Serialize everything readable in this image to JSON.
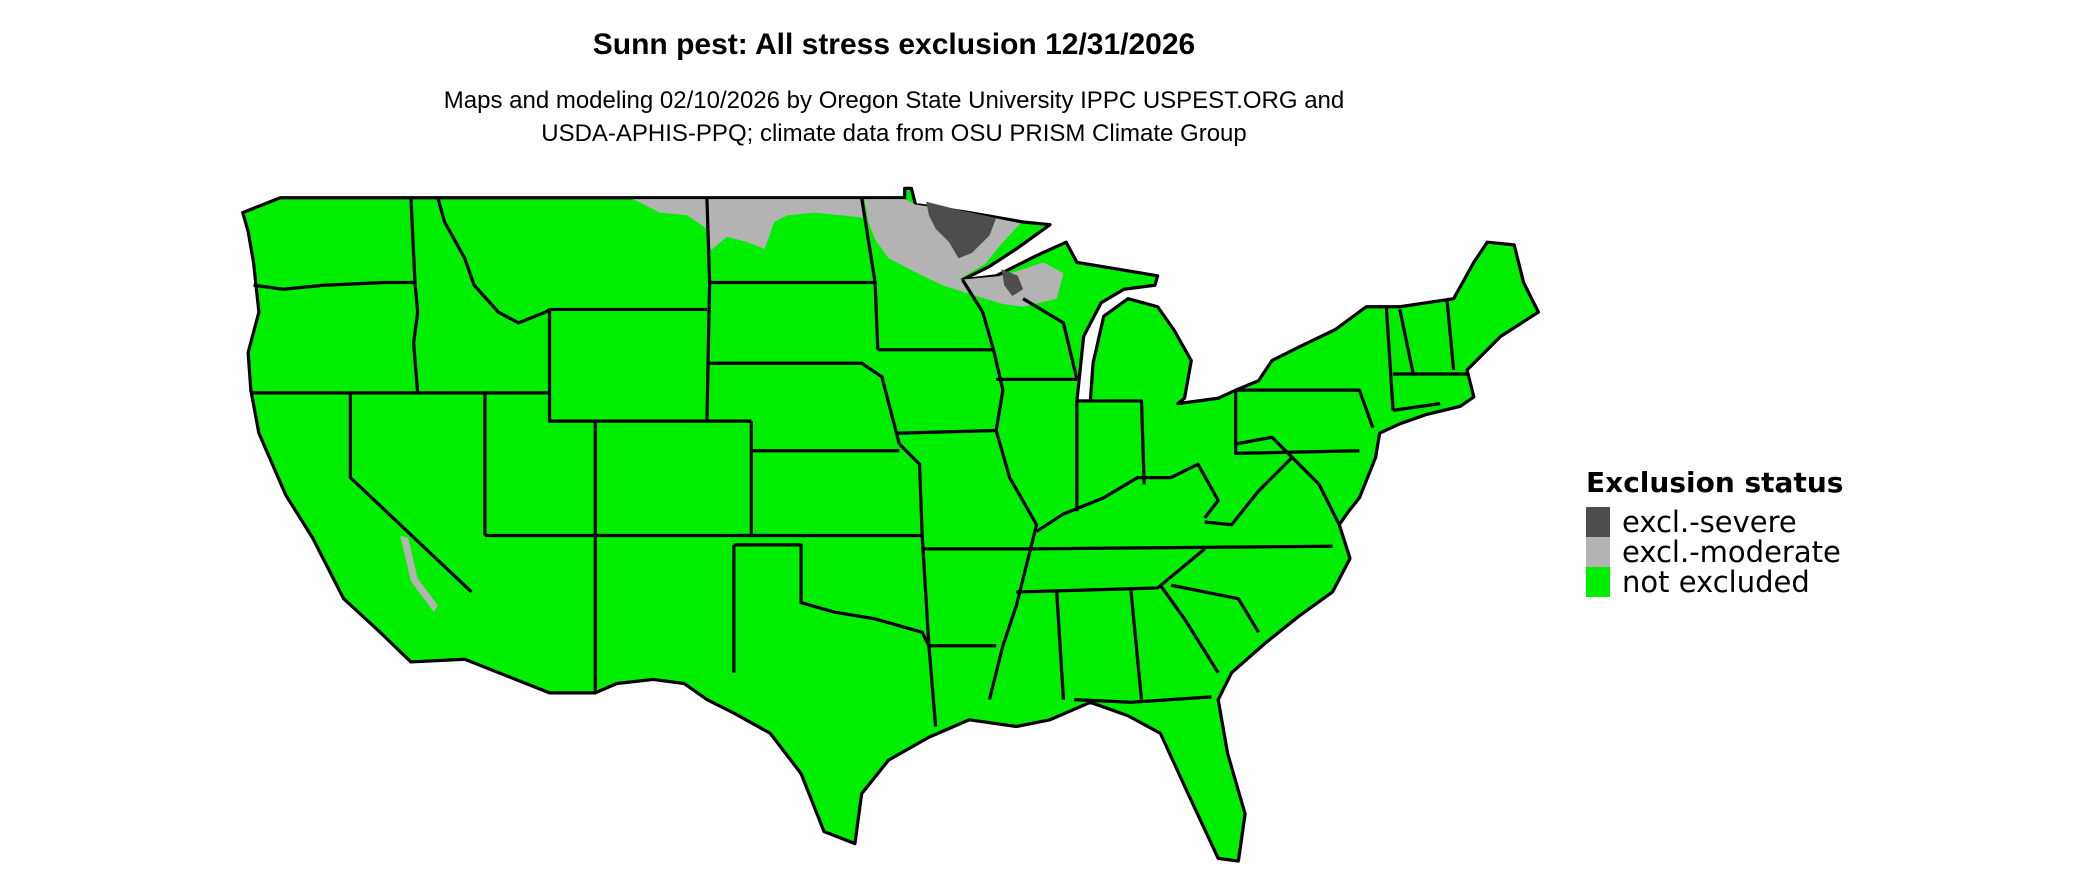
{
  "title": "Sunn pest: All stress exclusion 12/31/2026",
  "subtitle_line1": "Maps and modeling 02/10/2026 by Oregon State University IPPC USPEST.ORG and",
  "subtitle_line2": "USDA-APHIS-PPQ; climate data from OSU PRISM Climate Group",
  "legend": {
    "title": "Exclusion status",
    "items": [
      {
        "label": "excl.-severe",
        "color": "#4d4d4d"
      },
      {
        "label": "excl.-moderate",
        "color": "#b3b3b3"
      },
      {
        "label": "not excluded",
        "color": "#00ee00"
      }
    ]
  },
  "map": {
    "region": "Contiguous United States",
    "base_color": "#00ee00",
    "border_color": "#000000",
    "excluded_areas": [
      {
        "status": "excl.-moderate",
        "where": "northern North Dakota, northern Minnesota, northern Wisconsin"
      },
      {
        "status": "excl.-severe",
        "where": "northeastern Minnesota (Arrowhead), northern Wisconsin"
      }
    ]
  }
}
